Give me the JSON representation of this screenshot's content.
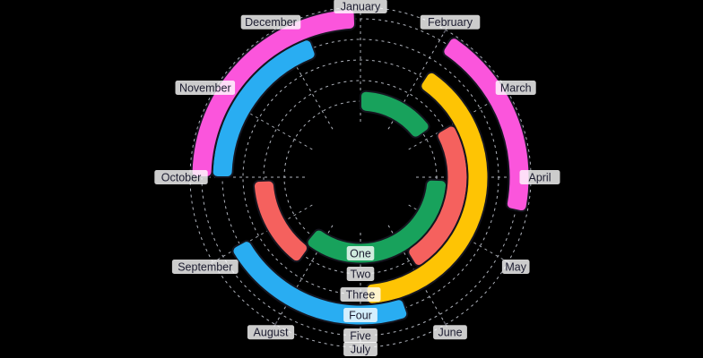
{
  "chart_data": {
    "type": "radial-bar",
    "title": "",
    "months": [
      "January",
      "February",
      "March",
      "April",
      "May",
      "June",
      "July",
      "August",
      "September",
      "October",
      "November",
      "December"
    ],
    "rings": [
      "One",
      "Two",
      "Three",
      "Four",
      "Five"
    ],
    "angular_axis": {
      "unit": "month",
      "start": "January",
      "direction": "clockwise",
      "degrees_per_month": 30
    },
    "series": [
      {
        "ring": "One",
        "color": "#18A25C",
        "arcs_deg": [
          [
            0,
            55
          ],
          [
            92,
            220
          ]
        ]
      },
      {
        "ring": "Two",
        "color": "#F5615E",
        "arcs_deg": [
          [
            60,
            148
          ],
          [
            216,
            268
          ]
        ]
      },
      {
        "ring": "Three",
        "color": "#FEC404",
        "arcs_deg": [
          [
            33,
            177
          ]
        ]
      },
      {
        "ring": "Four",
        "color": "#29ADF2",
        "arcs_deg": [
          [
            161,
            241
          ],
          [
            270,
            340
          ]
        ]
      },
      {
        "ring": "Five",
        "color": "#FB55DC",
        "arcs_deg": [
          [
            33,
            102
          ],
          [
            270,
            358
          ]
        ]
      }
    ],
    "grid": {
      "color": "#c3c8d1",
      "style": "dashed"
    },
    "label_style": {
      "text_color": "#1c1c30",
      "chip_color": "rgba(255,255,255,0.80)"
    },
    "outline_color": "#15151f",
    "background": "#000000"
  }
}
